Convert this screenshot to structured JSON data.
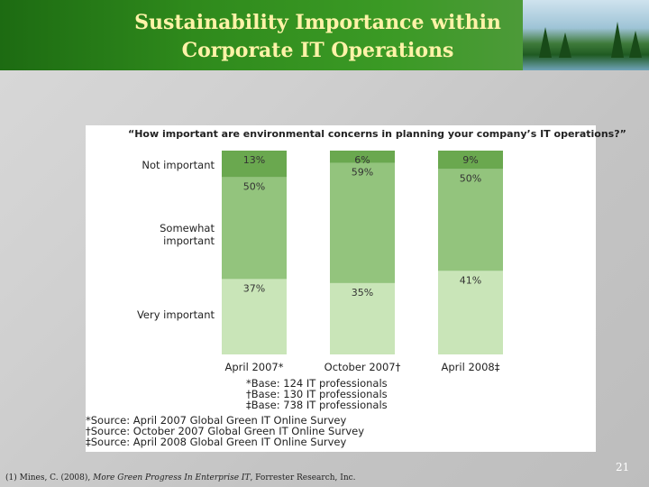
{
  "slide": {
    "title_line1": "Sustainability Importance within",
    "title_line2": "Corporate IT Operations",
    "page_number": "21",
    "footnote_prefix": "(1) Mines, C. (2008),",
    "footnote_title": "More Green Progress In Enterprise IT",
    "footnote_suffix": ", Forrester Research, Inc."
  },
  "chart_data": {
    "type": "bar",
    "stacked": true,
    "title": "“How important are environmental concerns in planning your company’s IT operations?”",
    "categories": [
      "April 2007*",
      "October 2007†",
      "April 2008‡"
    ],
    "series": [
      {
        "name": "Very important",
        "values": [
          37,
          35,
          41
        ],
        "labels": [
          "37%",
          "35%",
          "41%"
        ],
        "color": "#c9e5b8"
      },
      {
        "name": "Somewhat important",
        "values": [
          50,
          59,
          50
        ],
        "labels": [
          "50%",
          "59%",
          "50%"
        ],
        "color": "#93c47d"
      },
      {
        "name": "Not important",
        "values": [
          13,
          6,
          9
        ],
        "labels": [
          "13%",
          "6%",
          "9%"
        ],
        "color": "#6aa84f"
      }
    ],
    "ylim": [
      0,
      100
    ],
    "grid": false,
    "legend": "left",
    "base_notes": [
      "*Base: 124 IT professionals",
      "†Base: 130 IT professionals",
      "‡Base: 738 IT professionals"
    ],
    "source_notes": [
      "*Source: April 2007 Global Green IT Online Survey",
      "†Source: October 2007 Global Green IT Online Survey",
      "‡Source: April 2008 Global Green IT Online Survey"
    ]
  }
}
